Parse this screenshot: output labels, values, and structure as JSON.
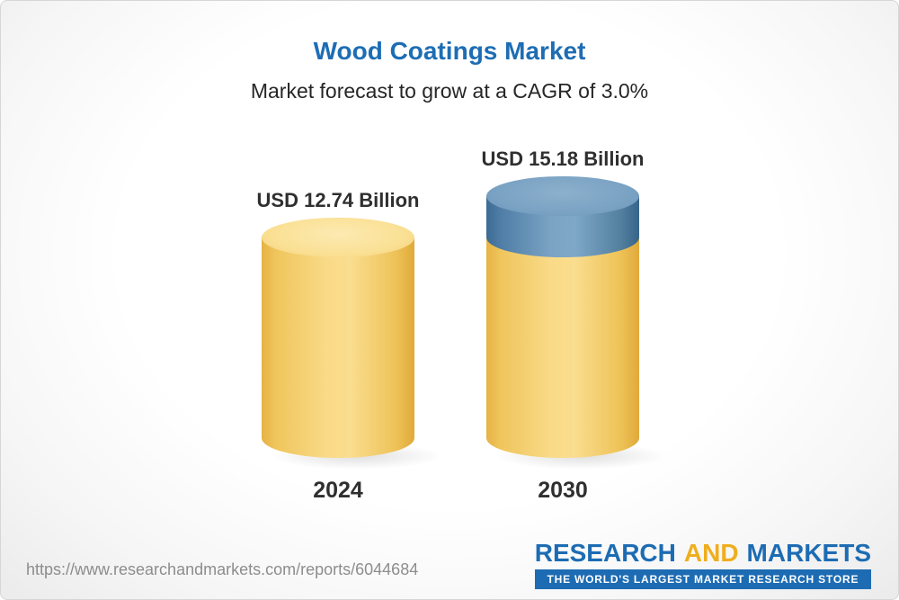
{
  "chart_data": {
    "type": "bar",
    "bar_style": "3d-cylinder",
    "title": "Wood Coatings Market",
    "subtitle": "Market forecast to grow at a CAGR of 3.0%",
    "cagr_percent": 3.0,
    "unit": "USD Billion",
    "categories": [
      "2024",
      "2030"
    ],
    "values": [
      12.74,
      15.18
    ],
    "value_labels": [
      "USD 12.74 Billion",
      "USD 15.18 Billion"
    ],
    "series_note": "2030 bar shows 2024 base in gold plus growth segment in blue on top",
    "grid": false,
    "legend": "none",
    "colors": {
      "title_text": "#1d6db4",
      "bar_base_gold": "#f8d77e",
      "bar_growth_blue": "#6f9cc0",
      "label_text": "#2f2f2f"
    }
  },
  "footer": {
    "url": "https://www.researchandmarkets.com/reports/6044684",
    "logo": {
      "word1": "RESEARCH",
      "word2": "AND",
      "word3": "MARKETS",
      "tagline": "THE WORLD'S LARGEST MARKET RESEARCH STORE",
      "brand_blue": "#1d6cb3",
      "brand_gold": "#efae1e"
    }
  }
}
